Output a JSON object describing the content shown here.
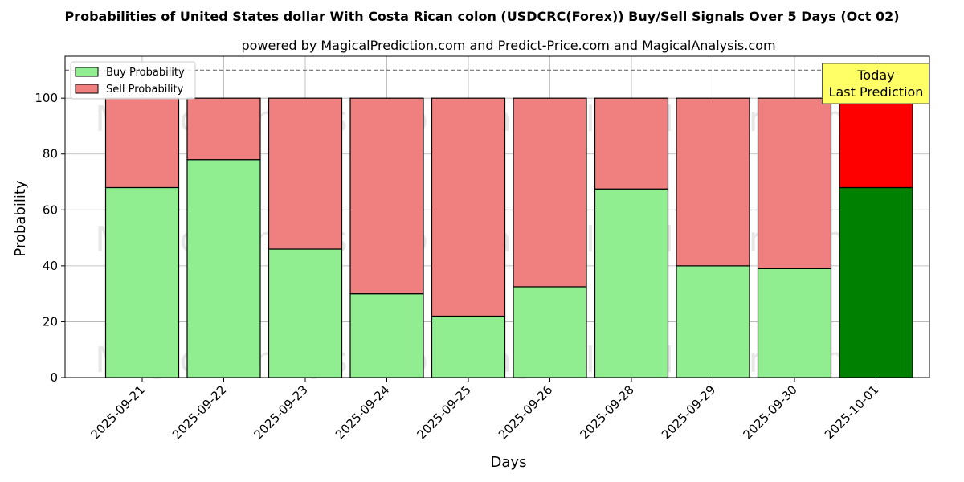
{
  "chart_data": {
    "type": "bar",
    "stacked": true,
    "title": "Probabilities of United States dollar With Costa Rican colon (USDCRC(Forex)) Buy/Sell Signals Over 5 Days (Oct 02)",
    "subtitle": "powered by MagicalPrediction.com and Predict-Price.com and MagicalAnalysis.com",
    "xlabel": "Days",
    "ylabel": "Probability",
    "ylim": [
      0,
      115
    ],
    "yticks": [
      0,
      20,
      40,
      60,
      80,
      100
    ],
    "grid": true,
    "legend_position": "top-left",
    "categories": [
      "2025-09-21",
      "2025-09-22",
      "2025-09-23",
      "2025-09-24",
      "2025-09-25",
      "2025-09-26",
      "2025-09-28",
      "2025-09-29",
      "2025-09-30",
      "2025-10-01"
    ],
    "series": [
      {
        "name": "Buy Probability",
        "color": "#90ee90",
        "highlight_color": "#008000",
        "values": [
          68,
          78,
          46,
          30,
          22,
          32.5,
          67.5,
          40,
          39,
          68
        ]
      },
      {
        "name": "Sell Probability",
        "color": "#f08080",
        "highlight_color": "#ff0000",
        "values": [
          32,
          22,
          54,
          70,
          78,
          67.5,
          32.5,
          60,
          61,
          32
        ]
      }
    ],
    "highlight_index": 9,
    "reference_line": {
      "y": 110,
      "style": "dashed",
      "color": "#808080"
    },
    "annotation": {
      "lines": [
        "Today",
        "Last Prediction"
      ],
      "background": "#ffff66"
    },
    "watermarks": [
      "MagicalAnalysis.com",
      "MagicalPrediction.com"
    ]
  }
}
